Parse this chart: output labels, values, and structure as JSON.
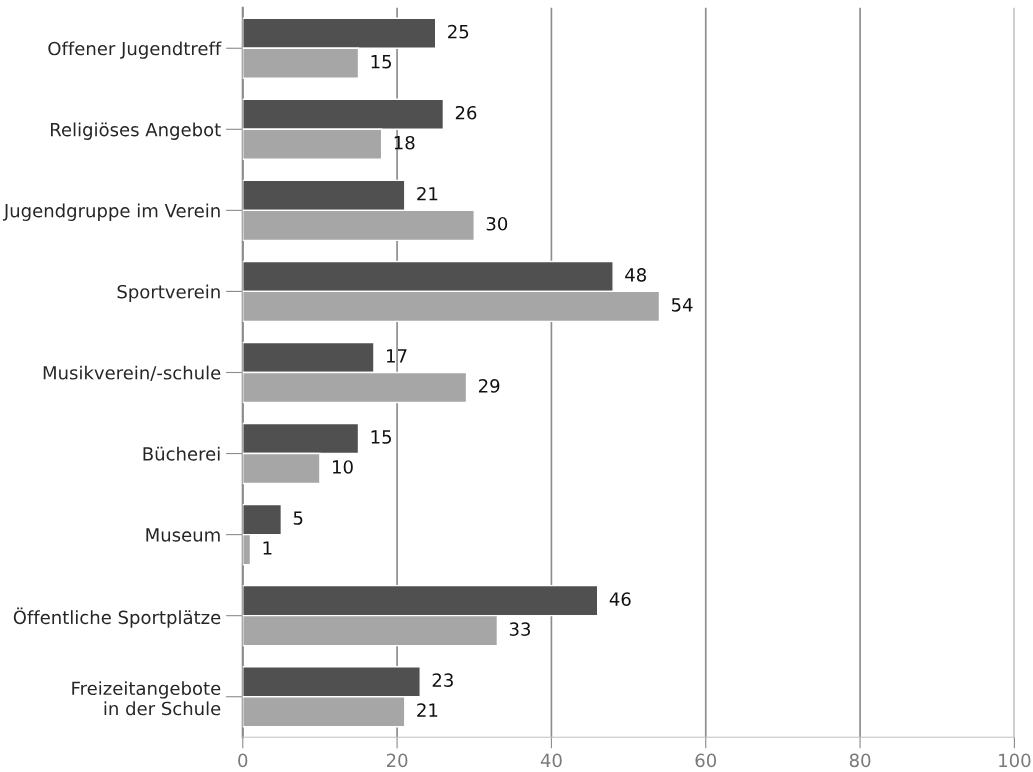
{
  "chart_data": {
    "type": "bar",
    "orientation": "horizontal",
    "categories": [
      "Offener Jugendtreff",
      "Religiöses Angebot",
      "Jugendgruppe im Verein",
      "Sportverein",
      "Musikverein/-schule",
      "Bücherei",
      "Museum",
      "Öffentliche Sportplätze",
      "Freizeitangebote\nin der Schule"
    ],
    "series": [
      {
        "color": "#505050",
        "values": [
          25,
          26,
          21,
          48,
          17,
          15,
          5,
          46,
          23
        ]
      },
      {
        "color": "#a6a6a6",
        "values": [
          15,
          18,
          30,
          54,
          29,
          10,
          1,
          33,
          21
        ]
      }
    ],
    "xlim": [
      0,
      100
    ],
    "xticks": [
      0,
      20,
      40,
      60,
      80,
      100
    ],
    "grid": "x",
    "data_labels": true,
    "legend": false
  }
}
